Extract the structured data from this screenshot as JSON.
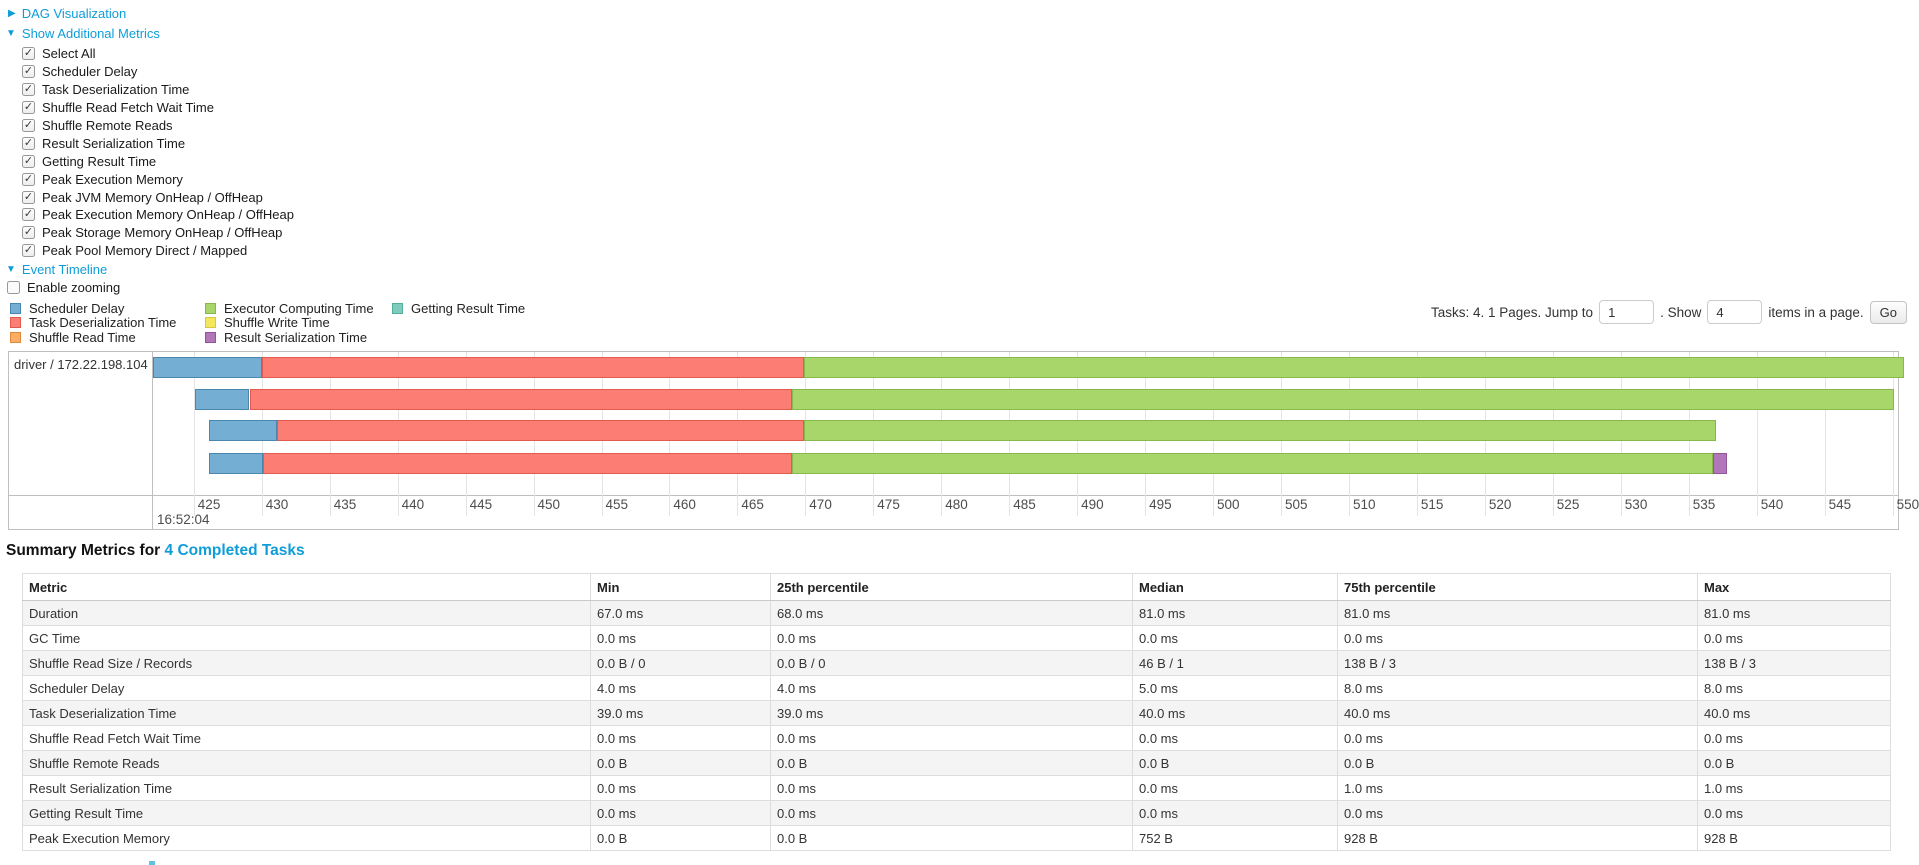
{
  "colors": {
    "link": "#0f9dd8",
    "segments": {
      "scheduler-delay": {
        "fill": "#74afd3",
        "border": "#4a87ae"
      },
      "task-deserialization": {
        "fill": "#fc7d73",
        "border": "#e05a50"
      },
      "shuffle-read": {
        "fill": "#fcac64",
        "border": "#e08a3c"
      },
      "executor-computing": {
        "fill": "#a8d66a",
        "border": "#87b84c"
      },
      "shuffle-write": {
        "fill": "#f2e75d",
        "border": "#d6c93e"
      },
      "result-serialization": {
        "fill": "#b277b8",
        "border": "#94549c"
      },
      "getting-result": {
        "fill": "#7eccbd",
        "border": "#55ad9c"
      }
    }
  },
  "controls": {
    "dag": {
      "label": "DAG Visualization",
      "state": "collapsed",
      "arrow": "▶"
    },
    "metrics": {
      "label": "Show Additional Metrics",
      "state": "expanded",
      "arrow": "▼",
      "checkboxes": [
        {
          "label": "Select All",
          "checked": true
        },
        {
          "label": "Scheduler Delay",
          "checked": true
        },
        {
          "label": "Task Deserialization Time",
          "checked": true
        },
        {
          "label": "Shuffle Read Fetch Wait Time",
          "checked": true
        },
        {
          "label": "Shuffle Remote Reads",
          "checked": true
        },
        {
          "label": "Result Serialization Time",
          "checked": true
        },
        {
          "label": "Getting Result Time",
          "checked": true
        },
        {
          "label": "Peak Execution Memory",
          "checked": true
        },
        {
          "label": "Peak JVM Memory OnHeap / OffHeap",
          "checked": true
        },
        {
          "label": "Peak Execution Memory OnHeap / OffHeap",
          "checked": true
        },
        {
          "label": "Peak Storage Memory OnHeap / OffHeap",
          "checked": true
        },
        {
          "label": "Peak Pool Memory Direct / Mapped",
          "checked": true
        }
      ]
    },
    "event_timeline": {
      "label": "Event Timeline",
      "state": "expanded",
      "arrow": "▼"
    },
    "enable_zooming": {
      "label": "Enable zooming",
      "checked": false
    }
  },
  "legend": {
    "columns": [
      [
        {
          "key": "scheduler-delay",
          "label": "Scheduler Delay"
        },
        {
          "key": "task-deserialization",
          "label": "Task Deserialization Time"
        },
        {
          "key": "shuffle-read",
          "label": "Shuffle Read Time"
        }
      ],
      [
        {
          "key": "executor-computing",
          "label": "Executor Computing Time"
        },
        {
          "key": "shuffle-write",
          "label": "Shuffle Write Time"
        },
        {
          "key": "result-serialization",
          "label": "Result Serialization Time"
        }
      ],
      [
        {
          "key": "getting-result",
          "label": "Getting Result Time"
        }
      ]
    ]
  },
  "pagination": {
    "tasks_text": "Tasks: 4. 1 Pages. Jump to",
    "jump_value": "1",
    "show_text": ". Show",
    "show_value": "4",
    "items_text": "items in a page.",
    "go_label": "Go"
  },
  "chart_data": {
    "type": "timeline",
    "row_label": "driver / 172.22.198.104",
    "axis": {
      "t_min_ms": 422.0,
      "t_max_ms": 550.4,
      "tick_start": 425,
      "tick_end": 550,
      "tick_step": 5,
      "major_label": "16:52:04",
      "unit": "milliseconds after 16:52:04"
    },
    "tasks": [
      {
        "segments": [
          {
            "name": "scheduler-delay",
            "start": 422.0,
            "end": 430.0
          },
          {
            "name": "task-deserialization",
            "start": 430.0,
            "end": 469.9
          },
          {
            "name": "executor-computing",
            "start": 469.9,
            "end": 550.8
          }
        ]
      },
      {
        "segments": [
          {
            "name": "scheduler-delay",
            "start": 425.1,
            "end": 429.1
          },
          {
            "name": "task-deserialization",
            "start": 429.1,
            "end": 469.0
          },
          {
            "name": "executor-computing",
            "start": 469.0,
            "end": 550.1
          }
        ]
      },
      {
        "segments": [
          {
            "name": "scheduler-delay",
            "start": 426.1,
            "end": 431.1
          },
          {
            "name": "task-deserialization",
            "start": 431.1,
            "end": 469.9
          },
          {
            "name": "executor-computing",
            "start": 469.9,
            "end": 537.0
          }
        ]
      },
      {
        "segments": [
          {
            "name": "scheduler-delay",
            "start": 426.1,
            "end": 430.1
          },
          {
            "name": "task-deserialization",
            "start": 430.1,
            "end": 469.0
          },
          {
            "name": "executor-computing",
            "start": 469.0,
            "end": 536.8
          },
          {
            "name": "result-serialization",
            "start": 536.8,
            "end": 537.8
          }
        ]
      }
    ]
  },
  "summary": {
    "title_prefix": "Summary Metrics for",
    "title_link": "4 Completed Tasks",
    "columns": [
      "Metric",
      "Min",
      "25th percentile",
      "Median",
      "75th percentile",
      "Max"
    ],
    "rows": [
      {
        "metric": "Duration",
        "values": [
          "67.0 ms",
          "68.0 ms",
          "81.0 ms",
          "81.0 ms",
          "81.0 ms"
        ]
      },
      {
        "metric": "GC Time",
        "values": [
          "0.0 ms",
          "0.0 ms",
          "0.0 ms",
          "0.0 ms",
          "0.0 ms"
        ]
      },
      {
        "metric": "Shuffle Read Size / Records",
        "values": [
          "0.0 B / 0",
          "0.0 B / 0",
          "46 B / 1",
          "138 B / 3",
          "138 B / 3"
        ]
      },
      {
        "metric": "Scheduler Delay",
        "values": [
          "4.0 ms",
          "4.0 ms",
          "5.0 ms",
          "8.0 ms",
          "8.0 ms"
        ]
      },
      {
        "metric": "Task Deserialization Time",
        "values": [
          "39.0 ms",
          "39.0 ms",
          "40.0 ms",
          "40.0 ms",
          "40.0 ms"
        ]
      },
      {
        "metric": "Shuffle Read Fetch Wait Time",
        "values": [
          "0.0 ms",
          "0.0 ms",
          "0.0 ms",
          "0.0 ms",
          "0.0 ms"
        ]
      },
      {
        "metric": "Shuffle Remote Reads",
        "values": [
          "0.0 B",
          "0.0 B",
          "0.0 B",
          "0.0 B",
          "0.0 B"
        ]
      },
      {
        "metric": "Result Serialization Time",
        "values": [
          "0.0 ms",
          "0.0 ms",
          "0.0 ms",
          "1.0 ms",
          "1.0 ms"
        ]
      },
      {
        "metric": "Getting Result Time",
        "values": [
          "0.0 ms",
          "0.0 ms",
          "0.0 ms",
          "0.0 ms",
          "0.0 ms"
        ]
      },
      {
        "metric": "Peak Execution Memory",
        "values": [
          "0.0 B",
          "0.0 B",
          "752 B",
          "928 B",
          "928 B"
        ]
      }
    ]
  }
}
